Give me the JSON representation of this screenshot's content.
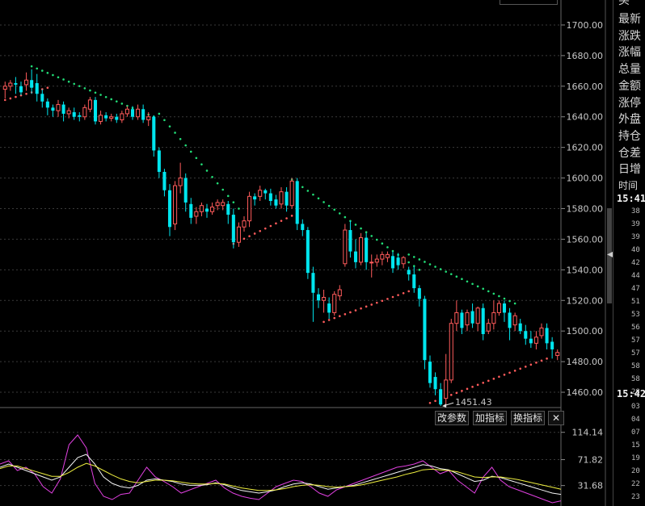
{
  "sidebar": {
    "top_partial": "买",
    "labels": [
      "最新",
      "涨跌",
      "涨幅",
      "总量",
      "金额",
      "涨停",
      "外盘",
      "持仓",
      "仓差",
      "日增"
    ],
    "time_header": "时间",
    "times": [
      "15:41",
      "15:42"
    ],
    "minute_list_1": [
      "38",
      "39",
      "39",
      "40",
      "42",
      "44",
      "47",
      "51",
      "53",
      "56",
      "57",
      "57",
      "58",
      "58",
      "28"
    ],
    "minute_list_2": [
      "03",
      "04",
      "07",
      "15",
      "19",
      "20",
      "22",
      "23"
    ]
  },
  "buttons": {
    "params": "改参数",
    "add_indicator": "加指标",
    "switch_indicator": "换指标",
    "close": "✕"
  },
  "chart_data": [
    {
      "type": "candlestick",
      "y_ticks": [
        "1700.00",
        "1680.00",
        "1660.00",
        "1640.00",
        "1620.00",
        "1600.00",
        "1580.00",
        "1560.00",
        "1540.00",
        "1520.00",
        "1500.00",
        "1480.00",
        "1460.00"
      ],
      "ylim": [
        1450,
        1710
      ],
      "annotation": "1451.43",
      "up_color": "#ff5b5b",
      "down_color": "#00e5ee",
      "candles": [
        [
          1658,
          1660,
          1652,
          1663
        ],
        [
          1660,
          1662,
          1657,
          1664
        ],
        [
          1662,
          1661,
          1655,
          1666
        ],
        [
          1660,
          1656,
          1654,
          1663
        ],
        [
          1661,
          1664,
          1657,
          1669
        ],
        [
          1664,
          1659,
          1655,
          1671
        ],
        [
          1662,
          1655,
          1650,
          1668
        ],
        [
          1655,
          1650,
          1646,
          1658
        ],
        [
          1650,
          1646,
          1641,
          1652
        ],
        [
          1646,
          1644,
          1640,
          1648
        ],
        [
          1644,
          1648,
          1640,
          1651
        ],
        [
          1648,
          1642,
          1637,
          1650
        ],
        [
          1642,
          1644,
          1639,
          1646
        ],
        [
          1643,
          1640,
          1638,
          1646
        ],
        [
          1641,
          1640,
          1637,
          1643
        ],
        [
          1640,
          1646,
          1638,
          1648
        ],
        [
          1645,
          1651,
          1643,
          1653
        ],
        [
          1651,
          1637,
          1635,
          1653
        ],
        [
          1637,
          1641,
          1635,
          1644
        ],
        [
          1641,
          1639,
          1637,
          1643
        ],
        [
          1639,
          1640,
          1637,
          1642
        ],
        [
          1640,
          1638,
          1636,
          1642
        ],
        [
          1638,
          1642,
          1636,
          1644
        ],
        [
          1642,
          1645,
          1640,
          1647
        ],
        [
          1645,
          1640,
          1638,
          1647
        ],
        [
          1640,
          1645,
          1638,
          1648
        ],
        [
          1645,
          1638,
          1636,
          1648
        ],
        [
          1638,
          1640,
          1634,
          1643
        ],
        [
          1640,
          1618,
          1614,
          1641
        ],
        [
          1618,
          1604,
          1600,
          1620
        ],
        [
          1604,
          1592,
          1588,
          1606
        ],
        [
          1592,
          1568,
          1562,
          1596
        ],
        [
          1570,
          1595,
          1566,
          1598
        ],
        [
          1595,
          1600,
          1590,
          1610
        ],
        [
          1600,
          1584,
          1578,
          1603
        ],
        [
          1583,
          1574,
          1570,
          1587
        ],
        [
          1575,
          1578,
          1570,
          1581
        ],
        [
          1578,
          1582,
          1575,
          1584
        ],
        [
          1580,
          1578,
          1574,
          1583
        ],
        [
          1578,
          1581,
          1576,
          1584
        ],
        [
          1582,
          1584,
          1579,
          1586
        ],
        [
          1582,
          1584,
          1579,
          1586
        ],
        [
          1583,
          1576,
          1570,
          1585
        ],
        [
          1576,
          1558,
          1554,
          1580
        ],
        [
          1558,
          1568,
          1555,
          1571
        ],
        [
          1568,
          1572,
          1565,
          1575
        ],
        [
          1572,
          1588,
          1568,
          1591
        ],
        [
          1588,
          1586,
          1582,
          1590
        ],
        [
          1588,
          1592,
          1585,
          1595
        ],
        [
          1592,
          1590,
          1586,
          1593
        ],
        [
          1590,
          1585,
          1582,
          1593
        ],
        [
          1586,
          1582,
          1580,
          1589
        ],
        [
          1583,
          1591,
          1580,
          1594
        ],
        [
          1591,
          1582,
          1578,
          1594
        ],
        [
          1582,
          1598,
          1580,
          1600
        ],
        [
          1598,
          1570,
          1566,
          1600
        ],
        [
          1570,
          1566,
          1562,
          1573
        ],
        [
          1566,
          1538,
          1534,
          1568
        ],
        [
          1538,
          1525,
          1506,
          1542
        ],
        [
          1524,
          1520,
          1515,
          1528
        ],
        [
          1520,
          1522,
          1512,
          1527
        ],
        [
          1518,
          1512,
          1508,
          1522
        ],
        [
          1512,
          1524,
          1510,
          1526
        ],
        [
          1523,
          1527,
          1520,
          1530
        ],
        [
          1544,
          1566,
          1542,
          1570
        ],
        [
          1566,
          1552,
          1548,
          1572
        ],
        [
          1552,
          1545,
          1541,
          1560
        ],
        [
          1545,
          1561,
          1543,
          1564
        ],
        [
          1561,
          1545,
          1540,
          1564
        ],
        [
          1545,
          1545,
          1535,
          1550
        ],
        [
          1545,
          1547,
          1542,
          1550
        ],
        [
          1547,
          1550,
          1543,
          1552
        ],
        [
          1548,
          1550,
          1545,
          1552
        ],
        [
          1549,
          1541,
          1538,
          1552
        ],
        [
          1548,
          1543,
          1540,
          1551
        ],
        [
          1544,
          1548,
          1541,
          1549
        ],
        [
          1540,
          1537,
          1533,
          1542
        ],
        [
          1537,
          1528,
          1525,
          1542
        ],
        [
          1528,
          1521,
          1516,
          1530
        ],
        [
          1521,
          1481,
          1475,
          1523
        ],
        [
          1480,
          1466,
          1463,
          1484
        ],
        [
          1470,
          1462,
          1458,
          1473
        ],
        [
          1462,
          1452,
          1451,
          1466
        ],
        [
          1456,
          1468,
          1452,
          1485
        ],
        [
          1468,
          1505,
          1466,
          1508
        ],
        [
          1505,
          1512,
          1500,
          1520
        ],
        [
          1512,
          1502,
          1498,
          1514
        ],
        [
          1504,
          1512,
          1500,
          1514
        ],
        [
          1513,
          1505,
          1502,
          1518
        ],
        [
          1505,
          1515,
          1500,
          1516
        ],
        [
          1515,
          1498,
          1494,
          1518
        ],
        [
          1500,
          1505,
          1498,
          1508
        ],
        [
          1505,
          1512,
          1501,
          1520
        ],
        [
          1512,
          1518,
          1510,
          1520
        ],
        [
          1518,
          1512,
          1506,
          1520
        ],
        [
          1512,
          1502,
          1494,
          1515
        ],
        [
          1504,
          1510,
          1500,
          1512
        ],
        [
          1505,
          1500,
          1498,
          1508
        ],
        [
          1500,
          1495,
          1491,
          1504
        ],
        [
          1495,
          1492,
          1489,
          1500
        ],
        [
          1492,
          1496,
          1488,
          1500
        ],
        [
          1497,
          1502,
          1495,
          1505
        ],
        [
          1502,
          1492,
          1488,
          1505
        ],
        [
          1493,
          1488,
          1482,
          1496
        ],
        [
          1484,
          1486,
          1481,
          1488
        ]
      ],
      "sar": [
        {
          "from": 0,
          "to": 8,
          "start": 1651,
          "end": 1659,
          "side": "below",
          "color": "#ff5b5b"
        },
        {
          "from": 5,
          "to": 28,
          "start": 1673,
          "end": 1640,
          "side": "above",
          "color": "#22dd77"
        },
        {
          "from": 29,
          "to": 44,
          "start": 1642,
          "end": 1580,
          "side": "above",
          "color": "#22dd77"
        },
        {
          "from": 43,
          "to": 55,
          "start": 1557,
          "end": 1577,
          "side": "below",
          "color": "#ff5b5b"
        },
        {
          "from": 54,
          "to": 78,
          "start": 1599,
          "end": 1540,
          "side": "above",
          "color": "#22dd77"
        },
        {
          "from": 60,
          "to": 76,
          "start": 1506,
          "end": 1526,
          "side": "below",
          "color": "#ff5b5b"
        },
        {
          "from": 76,
          "to": 96,
          "start": 1550,
          "end": 1518,
          "side": "above",
          "color": "#22dd77"
        },
        {
          "from": 80,
          "to": 102,
          "start": 1453,
          "end": 1482,
          "side": "below",
          "color": "#ff5b5b"
        }
      ]
    },
    {
      "type": "line",
      "y_ticks": [
        "114.14",
        "71.82",
        "31.68"
      ],
      "ylim": [
        0,
        125
      ],
      "series": [
        {
          "color": "#e040e0",
          "values": [
            65,
            70,
            55,
            60,
            50,
            30,
            20,
            42,
            95,
            110,
            90,
            35,
            15,
            10,
            18,
            20,
            40,
            60,
            45,
            38,
            30,
            20,
            25,
            30,
            35,
            40,
            28,
            20,
            15,
            12,
            10,
            20,
            30,
            35,
            40,
            38,
            30,
            20,
            15,
            25,
            30,
            35,
            40,
            45,
            50,
            55,
            60,
            62,
            65,
            70,
            60,
            50,
            55,
            40,
            30,
            20,
            45,
            60,
            40,
            30,
            25,
            20,
            15,
            10,
            5,
            8
          ]
        },
        {
          "color": "#f5f5f5",
          "values": [
            60,
            65,
            60,
            55,
            50,
            45,
            40,
            45,
            60,
            75,
            80,
            65,
            45,
            35,
            30,
            28,
            32,
            40,
            42,
            40,
            38,
            34,
            32,
            32,
            33,
            36,
            33,
            28,
            24,
            22,
            20,
            22,
            25,
            30,
            34,
            36,
            34,
            30,
            26,
            28,
            30,
            32,
            36,
            40,
            44,
            48,
            52,
            56,
            60,
            64,
            62,
            58,
            56,
            50,
            44,
            38,
            40,
            46,
            44,
            40,
            36,
            32,
            28,
            24,
            20,
            18
          ]
        },
        {
          "color": "#f0f040",
          "values": [
            58,
            62,
            62,
            58,
            54,
            50,
            46,
            46,
            52,
            60,
            66,
            62,
            55,
            48,
            42,
            38,
            36,
            38,
            40,
            40,
            39,
            37,
            35,
            34,
            34,
            35,
            34,
            31,
            28,
            26,
            24,
            24,
            25,
            27,
            30,
            32,
            33,
            32,
            30,
            29,
            30,
            31,
            33,
            36,
            39,
            42,
            45,
            49,
            52,
            56,
            57,
            56,
            55,
            53,
            49,
            45,
            44,
            45,
            45,
            43,
            41,
            38,
            35,
            32,
            29,
            26
          ]
        }
      ]
    }
  ]
}
